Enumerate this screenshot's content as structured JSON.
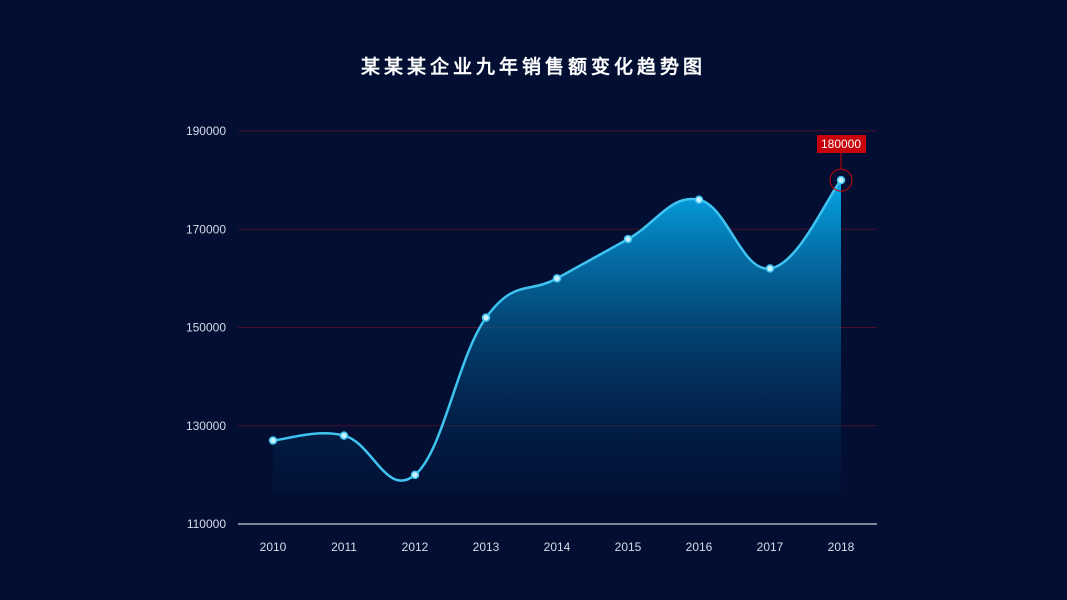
{
  "chart_data": {
    "type": "area",
    "title": "某某某企业九年销售额变化趋势图",
    "categories": [
      "2010",
      "2011",
      "2012",
      "2013",
      "2014",
      "2015",
      "2016",
      "2017",
      "2018"
    ],
    "series": [
      {
        "values": [
          127000,
          128000,
          120000,
          152000,
          160000,
          168000,
          176000,
          162000,
          180000
        ]
      }
    ],
    "ylim": [
      110000,
      190000
    ],
    "yticks": [
      110000,
      130000,
      150000,
      170000,
      190000
    ],
    "highlight": {
      "category": "2018",
      "label": "180000"
    },
    "grid": true,
    "colors": {
      "background": "#020f33",
      "line": "#3fc4f2",
      "area_top": "#05a8ea",
      "area_bottom": "#031a45",
      "gridline": "#4a0f2a",
      "axis": "#ffffff",
      "callout": "#c8000a"
    }
  }
}
